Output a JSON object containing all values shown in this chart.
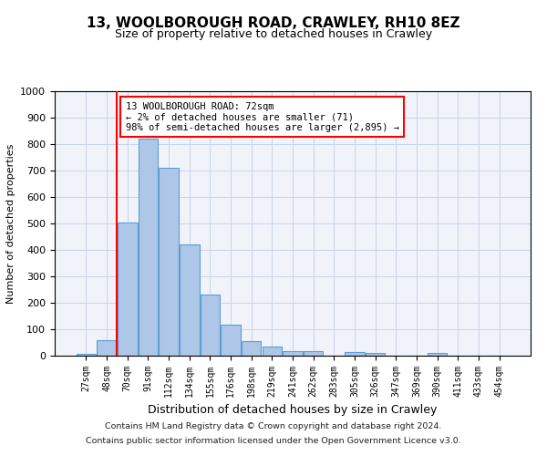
{
  "title1": "13, WOOLBOROUGH ROAD, CRAWLEY, RH10 8EZ",
  "title2": "Size of property relative to detached houses in Crawley",
  "xlabel": "Distribution of detached houses by size in Crawley",
  "ylabel": "Number of detached properties",
  "bar_labels": [
    "27sqm",
    "48sqm",
    "70sqm",
    "91sqm",
    "112sqm",
    "134sqm",
    "155sqm",
    "176sqm",
    "198sqm",
    "219sqm",
    "241sqm",
    "262sqm",
    "283sqm",
    "305sqm",
    "326sqm",
    "347sqm",
    "369sqm",
    "390sqm",
    "411sqm",
    "433sqm",
    "454sqm"
  ],
  "bar_values": [
    8,
    57,
    505,
    820,
    710,
    420,
    230,
    118,
    55,
    33,
    17,
    17,
    0,
    14,
    10,
    0,
    0,
    10,
    0,
    0,
    0
  ],
  "bar_color": "#aec6e8",
  "bar_edge_color": "#5a9fd4",
  "vline_color": "red",
  "vline_x_index": 2,
  "annotation_text": "13 WOOLBOROUGH ROAD: 72sqm\n← 2% of detached houses are smaller (71)\n98% of semi-detached houses are larger (2,895) →",
  "annotation_box_color": "white",
  "annotation_box_edge_color": "red",
  "ylim": [
    0,
    1000
  ],
  "yticks": [
    0,
    100,
    200,
    300,
    400,
    500,
    600,
    700,
    800,
    900,
    1000
  ],
  "footnote1": "Contains HM Land Registry data © Crown copyright and database right 2024.",
  "footnote2": "Contains public sector information licensed under the Open Government Licence v3.0.",
  "bg_color": "#f0f4fa",
  "grid_color": "#c8d4e8",
  "title1_fontsize": 11,
  "title2_fontsize": 9
}
